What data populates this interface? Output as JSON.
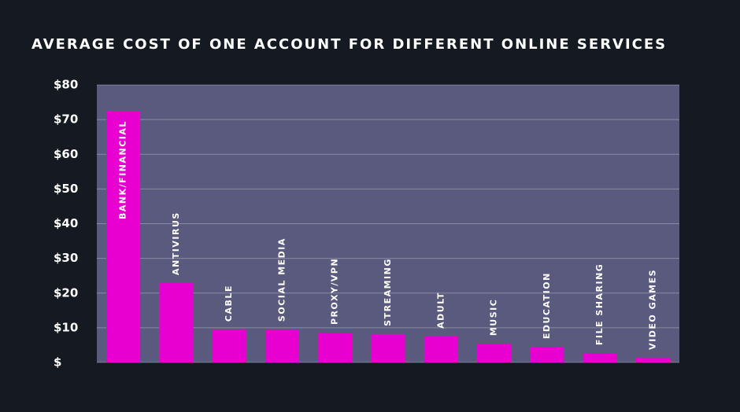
{
  "chart_data": {
    "type": "bar",
    "title": "AVERAGE COST OF ONE ACCOUNT FOR DIFFERENT ONLINE SERVICES",
    "categories": [
      "BANK/FINANCIAL",
      "ANTIVIRUS",
      "CABLE",
      "SOCIAL MEDIA",
      "PROXY/VPN",
      "STREAMING",
      "ADULT",
      "MUSIC",
      "EDUCATION",
      "FILE SHARING",
      "VIDEO GAMES"
    ],
    "values": [
      72.5,
      22.9,
      9.5,
      9.5,
      8.6,
      8.2,
      7.5,
      5.4,
      4.5,
      2.7,
      1.4
    ],
    "color": "#e800d0",
    "plot_color": "#5a5a7e",
    "ylim": [
      0,
      80
    ],
    "yticks": [
      {
        "value": 0,
        "label": "$"
      },
      {
        "value": 10,
        "label": "$10"
      },
      {
        "value": 20,
        "label": "$20"
      },
      {
        "value": 30,
        "label": "$30"
      },
      {
        "value": 40,
        "label": "$40"
      },
      {
        "value": 50,
        "label": "$50"
      },
      {
        "value": 60,
        "label": "$60"
      },
      {
        "value": 70,
        "label": "$70"
      },
      {
        "value": 80,
        "label": "$80"
      }
    ],
    "grid": true
  }
}
